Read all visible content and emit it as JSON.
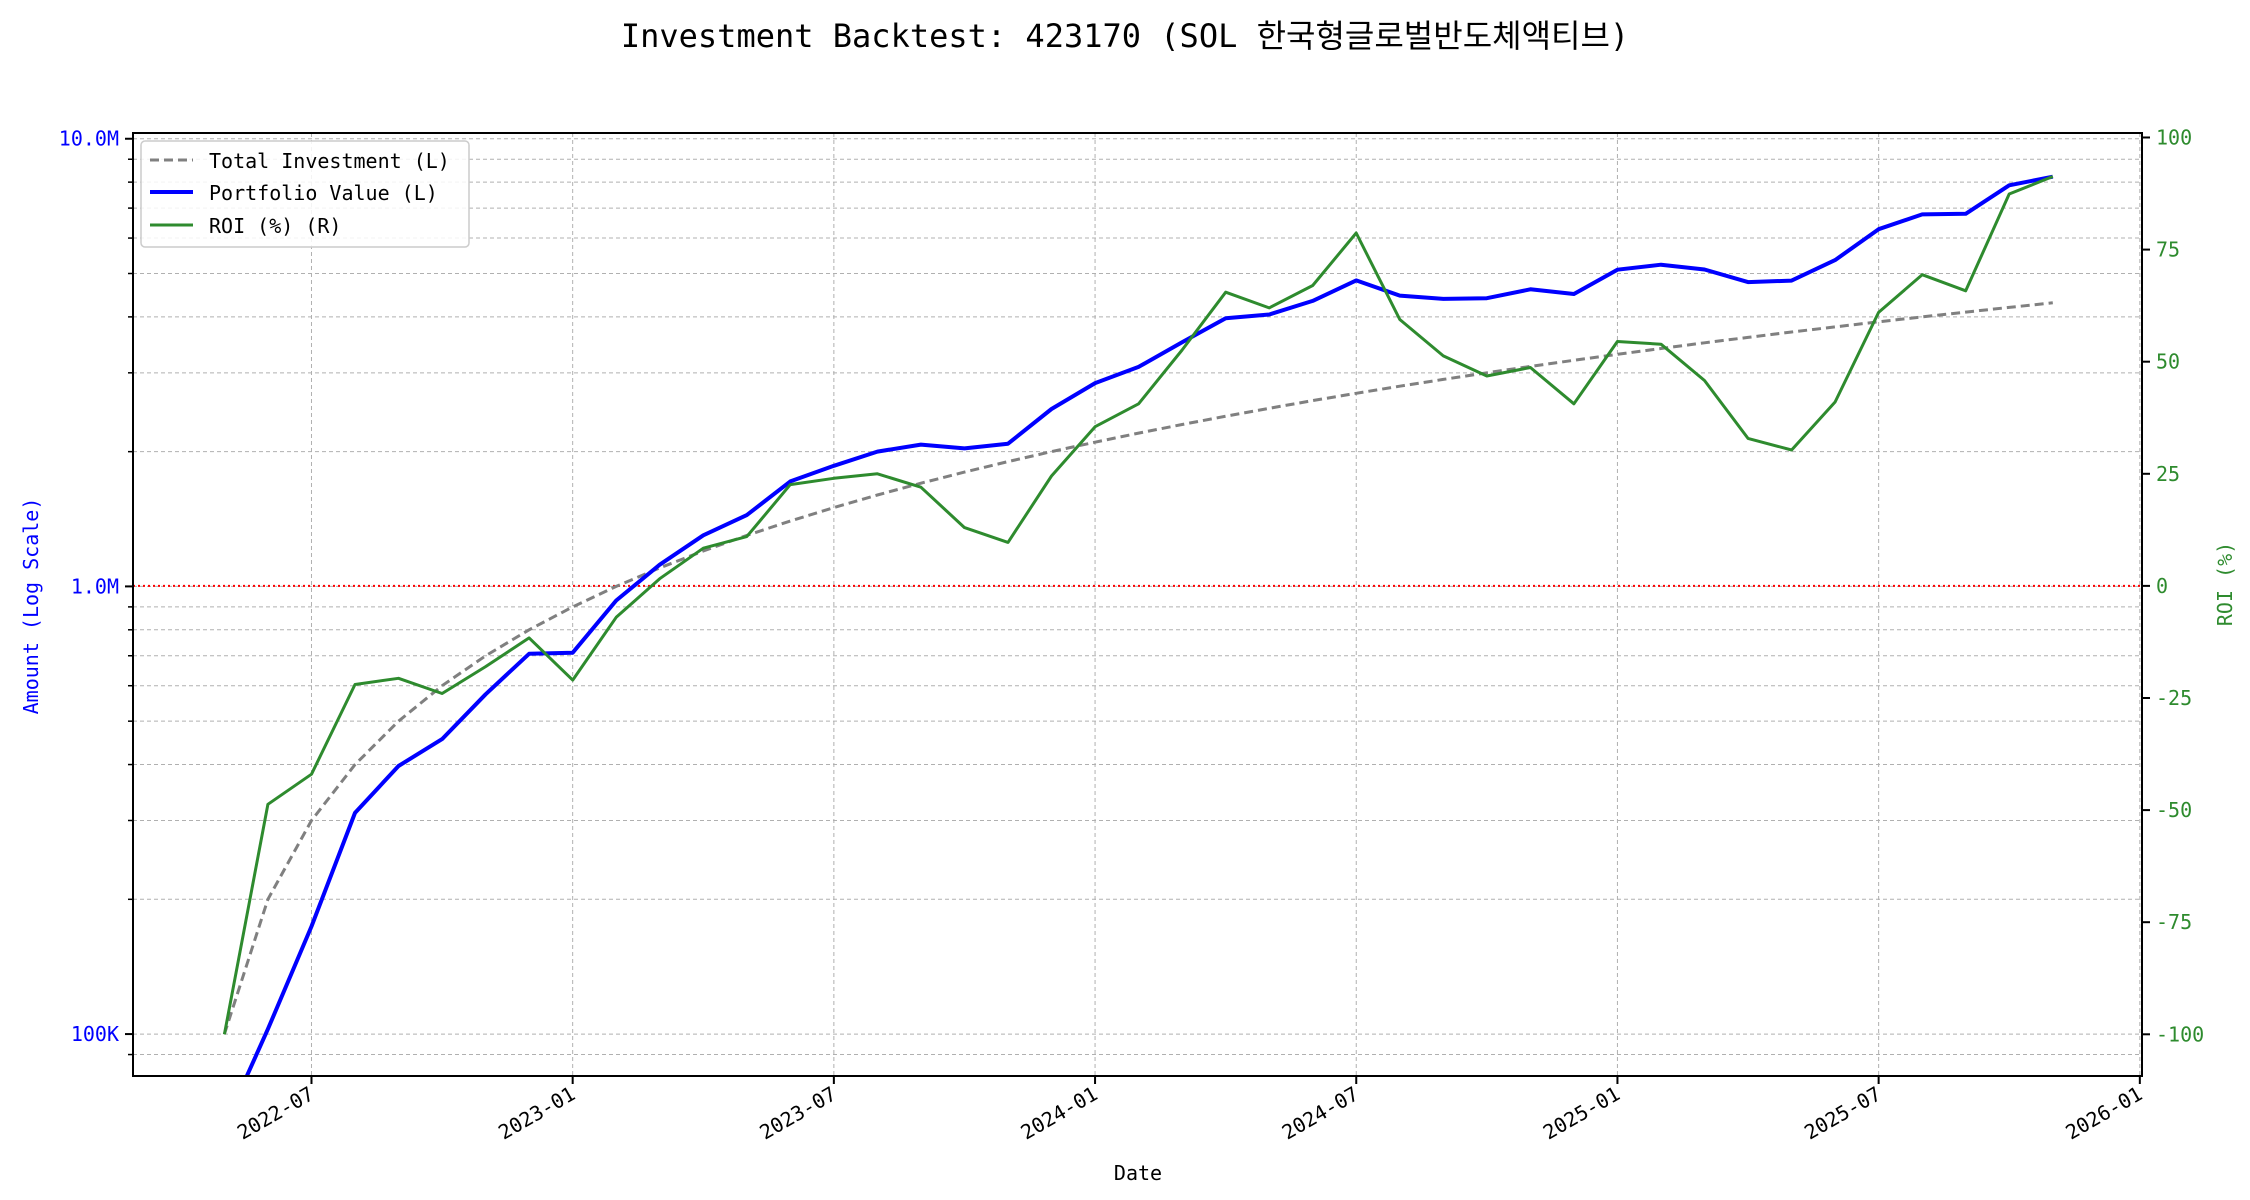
{
  "chart_data": {
    "type": "line",
    "title": "Investment Backtest: 423170 (SOL 한국형글로벌반도체액티브)",
    "xlabel": "Date",
    "ylabel_left": "Amount (Log Scale)",
    "ylabel_right": "ROI (%)",
    "x": [
      "2022-05",
      "2022-06",
      "2022-07",
      "2022-08",
      "2022-09",
      "2022-10",
      "2022-11",
      "2022-12",
      "2023-01",
      "2023-02",
      "2023-03",
      "2023-04",
      "2023-05",
      "2023-06",
      "2023-07",
      "2023-08",
      "2023-09",
      "2023-10",
      "2023-11",
      "2023-12",
      "2024-01",
      "2024-02",
      "2024-03",
      "2024-04",
      "2024-05",
      "2024-06",
      "2024-07",
      "2024-08",
      "2024-09",
      "2024-10",
      "2024-11",
      "2024-12",
      "2025-01",
      "2025-02",
      "2025-03",
      "2025-04",
      "2025-05",
      "2025-06",
      "2025-07",
      "2025-08",
      "2025-09",
      "2025-10",
      "2025-11"
    ],
    "x_ticks": [
      "2022-07",
      "2023-01",
      "2023-07",
      "2024-01",
      "2024-07",
      "2025-01",
      "2025-07",
      "2026-01"
    ],
    "x_tick_index": [
      2,
      8,
      14,
      20,
      26,
      32,
      38,
      44
    ],
    "xlim_index": [
      -2.1,
      44.05
    ],
    "y_left_scale": "log",
    "ylim_left": [
      80600,
      10300000
    ],
    "y_left_ticks": [
      100000,
      1000000,
      10000000
    ],
    "y_left_tick_labels": [
      "100K",
      "1.0M",
      "10.0M"
    ],
    "ylim_right": [
      -109.3,
      101
    ],
    "y_right_ticks": [
      -100,
      -75,
      -50,
      -25,
      0,
      25,
      50,
      75,
      100
    ],
    "y_right_tick_labels": [
      "-100",
      "-75",
      "-50",
      "-25",
      "0",
      "25",
      "50",
      "75",
      "100"
    ],
    "reference_line_roi": 0,
    "grid": true,
    "legend_position": "top-left",
    "series": [
      {
        "name": "Total Investment (L)",
        "axis": "left",
        "color": "#808080",
        "style": "dashed",
        "values": [
          100000,
          200000,
          300000,
          400000,
          500000,
          600000,
          700000,
          800000,
          900000,
          1000000,
          1100000,
          1200000,
          1300000,
          1400000,
          1500000,
          1600000,
          1700000,
          1800000,
          1900000,
          2000000,
          2100000,
          2200000,
          2300000,
          2400000,
          2500000,
          2600000,
          2700000,
          2800000,
          2900000,
          3000000,
          3100000,
          3200000,
          3300000,
          3400000,
          3500000,
          3600000,
          3700000,
          3800000,
          3900000,
          4000000,
          4100000,
          4200000,
          4300000
        ]
      },
      {
        "name": "Portfolio Value (L)",
        "axis": "left",
        "color": "#0000ff",
        "style": "solid",
        "values": [
          0,
          102600,
          174000,
          312000,
          397000,
          456000,
          574000,
          707000,
          711000,
          930000,
          1118000,
          1301000,
          1443000,
          1716000,
          1860000,
          2000000,
          2074000,
          2034000,
          2084000,
          2490000,
          2846000,
          3093000,
          3510000,
          3972000,
          4050000,
          4342000,
          4825000,
          4463000,
          4388000,
          4404000,
          4610000,
          4499000,
          5099000,
          5233000,
          5103000,
          4784000,
          4821000,
          5358000,
          6279000,
          6776000,
          6798000,
          7871000,
          8226000
        ]
      },
      {
        "name": "ROI (%) (R)",
        "axis": "right",
        "color": "#2e8b2e",
        "style": "solid",
        "values": [
          -100,
          -48.7,
          -42,
          -22,
          -20.6,
          -24,
          -18,
          -11.6,
          -21,
          -7,
          1.6,
          8.4,
          11,
          22.6,
          24,
          25,
          22,
          13,
          9.7,
          24.5,
          35.5,
          40.6,
          52.6,
          65.5,
          62,
          67,
          78.7,
          59.4,
          51.3,
          46.8,
          48.7,
          40.6,
          54.5,
          53.9,
          45.8,
          32.9,
          30.3,
          41,
          61,
          69.4,
          65.8,
          87.4,
          91.3
        ]
      }
    ]
  }
}
